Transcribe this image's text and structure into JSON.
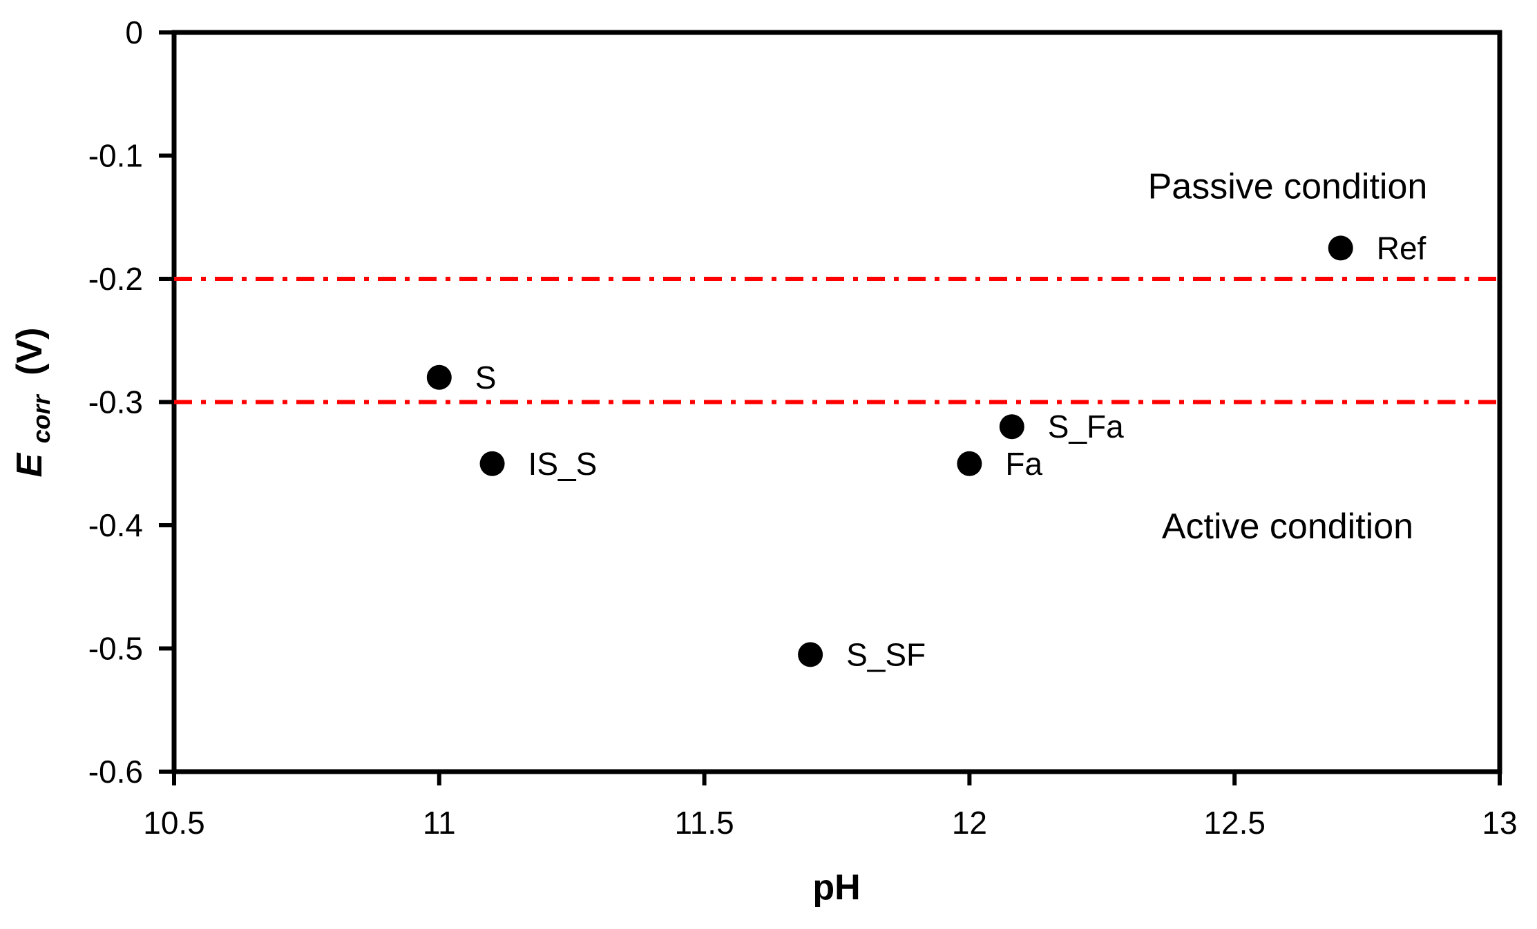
{
  "page": {
    "background": "#FFFFFF"
  },
  "chart_data": {
    "type": "scatter",
    "title": "",
    "xlabel": "pH",
    "ylabel": "Ecorr (V)",
    "ylabel_parts": {
      "symbol": "E",
      "subscript": "corr",
      "unit": "(V)"
    },
    "xlim": [
      10.5,
      13
    ],
    "ylim": [
      -0.6,
      0
    ],
    "xticks": [
      10.5,
      11,
      11.5,
      12,
      12.5,
      13
    ],
    "xtick_labels": [
      "10.5",
      "11",
      "11.5",
      "12",
      "12.5",
      "13"
    ],
    "yticks": [
      0,
      -0.1,
      -0.2,
      -0.3,
      -0.4,
      -0.5,
      -0.6
    ],
    "ytick_labels": [
      "0",
      "-0.1",
      "-0.2",
      "-0.3",
      "-0.4",
      "-0.5",
      "-0.6"
    ],
    "grid": false,
    "legend_position": "none",
    "axis_color": "#000000",
    "marker": {
      "shape": "circle",
      "color": "#000000",
      "radius_px": 18
    },
    "points": [
      {
        "label": "S",
        "x": 11.0,
        "y": -0.28
      },
      {
        "label": "IS_S",
        "x": 11.1,
        "y": -0.35
      },
      {
        "label": "S_SF",
        "x": 11.7,
        "y": -0.505
      },
      {
        "label": "Fa",
        "x": 12.0,
        "y": -0.35
      },
      {
        "label": "S_Fa",
        "x": 12.08,
        "y": -0.32
      },
      {
        "label": "Ref",
        "x": 12.7,
        "y": -0.175
      }
    ],
    "reference_lines": [
      {
        "y": -0.2,
        "color": "#FF0000",
        "style": "dash-dot"
      },
      {
        "y": -0.3,
        "color": "#FF0000",
        "style": "dash-dot"
      }
    ],
    "annotations": [
      {
        "text": "Passive condition",
        "x": 12.6,
        "y": -0.124
      },
      {
        "text": "Active condition",
        "x": 12.6,
        "y": -0.4
      }
    ]
  }
}
